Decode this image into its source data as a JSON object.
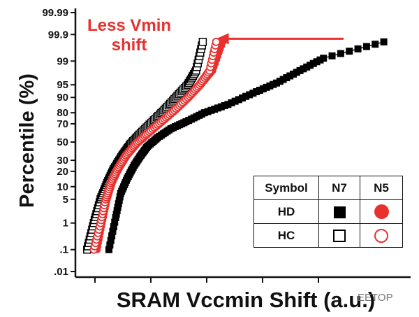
{
  "chart_data": {
    "type": "scatter",
    "title": "",
    "xlabel": "SRAM Vccmin Shift (a.u.)",
    "ylabel": "Percentile (%)",
    "yscale": "normal-probability",
    "yticks": [
      ".01",
      ".1",
      "1",
      "5",
      "10",
      "20",
      "30",
      "50",
      "70",
      "80",
      "90",
      "95",
      "99",
      "99.9",
      "99.99"
    ],
    "xticks": [
      "",
      "",
      "",
      "",
      ""
    ],
    "xlim": [
      0,
      10
    ],
    "ylim": [
      0.01,
      99.99
    ],
    "grid": false,
    "legend": {
      "position": "bottom-right",
      "header": [
        "Symbol",
        "N7",
        "N5"
      ],
      "rows": [
        "HD",
        "HC"
      ]
    },
    "annotation": {
      "text_line1": "Less Vmin",
      "text_line2": "shift",
      "arrow_from_x": 8.0,
      "arrow_to_x": 4.2,
      "arrow_at_percentile": 99.85
    },
    "watermark": "EETOP",
    "colors": {
      "N5": "#e8312f",
      "N7": "#000000"
    },
    "series": [
      {
        "name": "N7 HD",
        "marker": "filled-square",
        "color": "#000000",
        "x": [
          1.0,
          1.2,
          1.35,
          1.55,
          1.75,
          1.95,
          2.15,
          2.45,
          2.85,
          3.3,
          3.85,
          4.55,
          5.3,
          6.0,
          6.7,
          7.4,
          9.2
        ],
        "y": [
          0.1,
          1.5,
          7,
          15,
          25,
          35,
          45,
          55,
          65,
          72,
          80,
          86,
          92,
          95.5,
          98,
          99.2,
          99.8
        ]
      },
      {
        "name": "N7 HC",
        "marker": "open-square",
        "color": "#000000",
        "x": [
          0.35,
          0.55,
          0.75,
          0.95,
          1.15,
          1.4,
          1.65,
          1.95,
          2.3,
          2.65,
          3.0,
          3.35,
          3.6,
          3.8
        ],
        "y": [
          0.1,
          1,
          5,
          12,
          22,
          35,
          48,
          60,
          72,
          82,
          90,
          95,
          98,
          99.8
        ]
      },
      {
        "name": "N5 HD",
        "marker": "filled-circle",
        "color": "#e8312f",
        "x": [
          0.65,
          0.8,
          0.95,
          1.1,
          1.3,
          1.55,
          1.85,
          2.2,
          2.6,
          3.0,
          3.4,
          3.75,
          4.1,
          4.4
        ],
        "y": [
          0.1,
          1,
          5,
          12,
          22,
          35,
          48,
          60,
          72,
          82,
          90,
          95,
          98,
          99.8
        ]
      },
      {
        "name": "N5 HC",
        "marker": "open-circle",
        "color": "#e8312f",
        "x": [
          0.55,
          0.75,
          0.9,
          1.05,
          1.25,
          1.5,
          1.8,
          2.15,
          2.55,
          2.95,
          3.35,
          3.7,
          4.0,
          4.2
        ],
        "y": [
          0.1,
          1,
          5,
          12,
          22,
          35,
          48,
          60,
          72,
          82,
          90,
          95,
          98,
          99.8
        ]
      }
    ]
  }
}
